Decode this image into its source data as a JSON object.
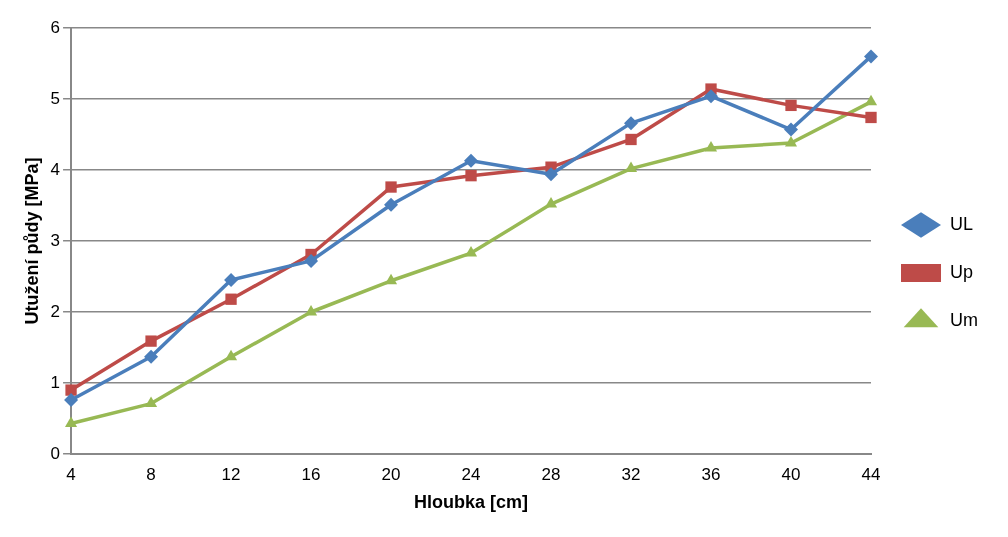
{
  "chart_data": {
    "type": "line",
    "xlabel": "Hloubka [cm]",
    "ylabel": "Utužení půdy [MPa]",
    "categories": [
      "4",
      "8",
      "12",
      "16",
      "20",
      "24",
      "28",
      "32",
      "36",
      "40",
      "44"
    ],
    "series": [
      {
        "name": "UL",
        "color": "#4a7ebb",
        "marker": "diamond",
        "values": [
          0.76,
          1.37,
          2.45,
          2.72,
          3.51,
          4.13,
          3.94,
          4.66,
          5.04,
          4.57,
          5.6
        ]
      },
      {
        "name": "Up",
        "color": "#be4b48",
        "marker": "square",
        "values": [
          0.9,
          1.59,
          2.18,
          2.81,
          3.76,
          3.92,
          4.04,
          4.43,
          5.14,
          4.91,
          4.74
        ]
      },
      {
        "name": "Um",
        "color": "#98b954",
        "marker": "triangle",
        "values": [
          0.43,
          0.71,
          1.37,
          2.0,
          2.44,
          2.83,
          3.52,
          4.02,
          4.31,
          4.38,
          4.96
        ]
      }
    ],
    "ylim": [
      0,
      6
    ],
    "yticks": [
      0,
      1,
      2,
      3,
      4,
      5,
      6
    ],
    "grid": "y",
    "legend": "right"
  }
}
